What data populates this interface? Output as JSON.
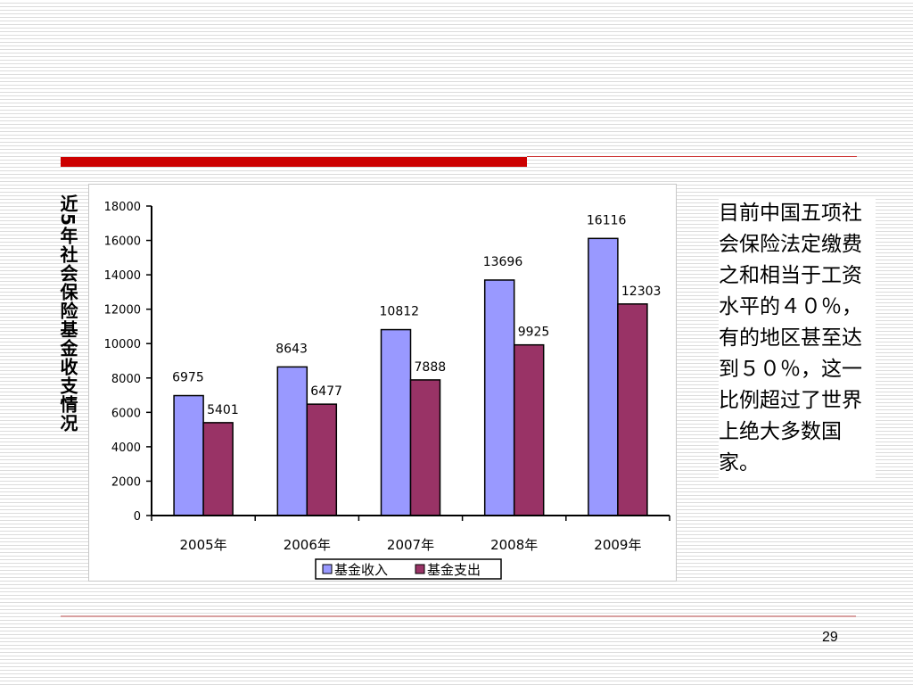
{
  "slide": {
    "vertical_title": "近5年社会保险基金收支情况",
    "side_text": "目前中国五项社会保险法定缴费之和相当于工资水平的４０％，有的地区甚至达到５０％，这一比例超过了世界上绝大多数国家。",
    "page_number": "29"
  },
  "chart_data": {
    "type": "bar",
    "categories": [
      "2005年",
      "2006年",
      "2007年",
      "2008年",
      "2009年"
    ],
    "series": [
      {
        "name": "基金收入",
        "values": [
          6975,
          8643,
          10812,
          13696,
          16116
        ],
        "color": "#9999ff"
      },
      {
        "name": "基金支出",
        "values": [
          5401,
          6477,
          7888,
          9925,
          12303
        ],
        "color": "#993366"
      }
    ],
    "ylim": [
      0,
      18000
    ],
    "yticks": [
      0,
      2000,
      4000,
      6000,
      8000,
      10000,
      12000,
      14000,
      16000,
      18000
    ],
    "legend": "bottom",
    "grid": false,
    "data_labels": true
  },
  "colors": {
    "accent_red": "#cc0000"
  }
}
